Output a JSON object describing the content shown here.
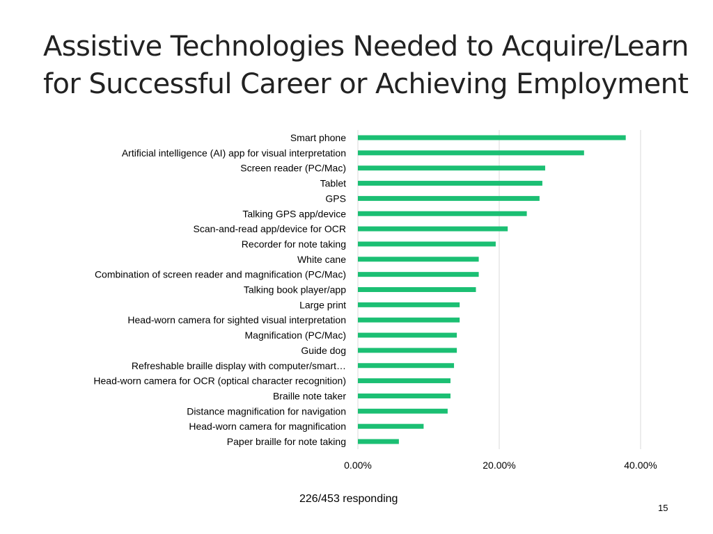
{
  "slide": {
    "title_line1": "Assistive Technologies Needed to Acquire/Learn",
    "title_line2": "for Successful Career or Achieving Employment",
    "footnote": "226/453 responding",
    "page_number": "15"
  },
  "chart_data": {
    "type": "bar",
    "orientation": "horizontal",
    "categories": [
      "Smart phone",
      "Artificial intelligence (AI) app for visual interpretation",
      "Screen reader (PC/Mac)",
      "Tablet",
      "GPS",
      "Talking GPS app/device",
      "Scan-and-read app/device for OCR",
      "Recorder for note taking",
      "White cane",
      "Combination of screen reader and magnification (PC/Mac)",
      "Talking book player/app",
      "Large print",
      "Head-worn camera for sighted visual interpretation",
      "Magnification (PC/Mac)",
      "Guide dog",
      "Refreshable braille display with computer/smart…",
      "Head-worn camera for OCR (optical character recognition)",
      "Braille note taker",
      "Distance magnification for navigation",
      "Head-worn camera for magnification",
      "Paper braille for note taking"
    ],
    "values": [
      37.9,
      32.0,
      26.5,
      26.1,
      25.7,
      23.9,
      21.2,
      19.5,
      17.1,
      17.1,
      16.7,
      14.4,
      14.4,
      14.0,
      14.0,
      13.6,
      13.1,
      13.1,
      12.7,
      9.3,
      5.8
    ],
    "xlim": [
      0,
      40
    ],
    "xticks": [
      "0.00%",
      "20.00%",
      "40.00%"
    ],
    "xtick_values": [
      0,
      20,
      40
    ],
    "bar_color": "#1bbf73",
    "grid": true,
    "title": "",
    "xlabel": "",
    "ylabel": ""
  }
}
